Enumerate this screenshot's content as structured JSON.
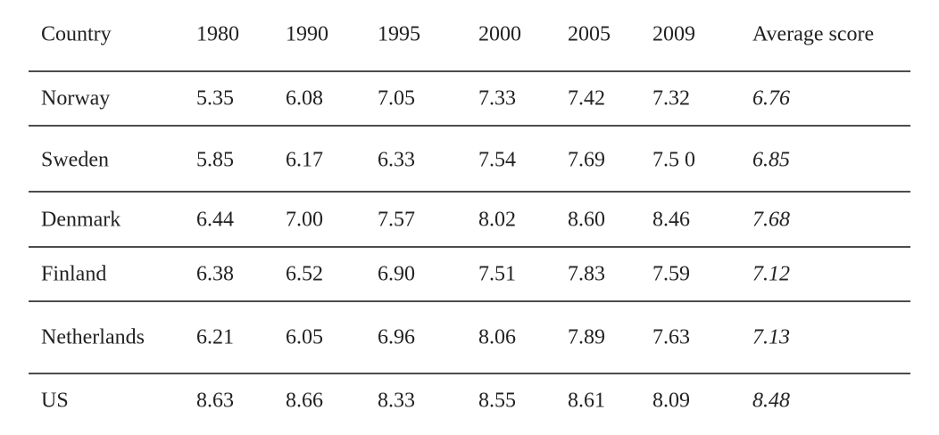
{
  "table": {
    "header": [
      "Country",
      "1980",
      "1990",
      "1995",
      "2000",
      "2005",
      "2009",
      "Average score"
    ],
    "rows": [
      [
        "Norway",
        "5.35",
        "6.08",
        "7.05",
        "7.33",
        "7.42",
        "7.32",
        "6.76"
      ],
      [
        "Sweden",
        "5.85",
        "6.17",
        "6.33",
        "7.54",
        "7.69",
        "7.5 0",
        "6.85"
      ],
      [
        "Denmark",
        "6.44",
        "7.00",
        "7.57",
        "8.02",
        "8.60",
        "8.46",
        "7.68"
      ],
      [
        "Finland",
        "6.38",
        "6.52",
        "6.90",
        "7.51",
        "7.83",
        "7.59",
        "7.12"
      ],
      [
        "Netherlands",
        "6.21",
        "6.05",
        "6.96",
        "8.06",
        "7.89",
        "7.63",
        "7.13"
      ],
      [
        "US",
        "8.63",
        "8.66",
        "8.33",
        "8.55",
        "8.61",
        "8.09",
        "8.48"
      ]
    ]
  }
}
